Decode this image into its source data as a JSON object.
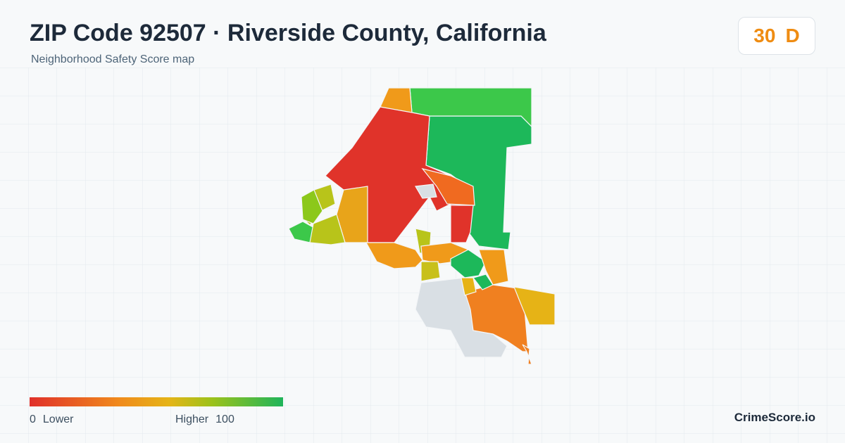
{
  "header": {
    "title": "ZIP Code 92507 · Riverside County, California",
    "subtitle": "Neighborhood Safety Score map"
  },
  "score": {
    "value": 30,
    "grade": "D"
  },
  "legend": {
    "min": 0,
    "min_label": "Lower",
    "max_label": "Higher",
    "max": 100
  },
  "brand": "CrimeScore.io"
}
